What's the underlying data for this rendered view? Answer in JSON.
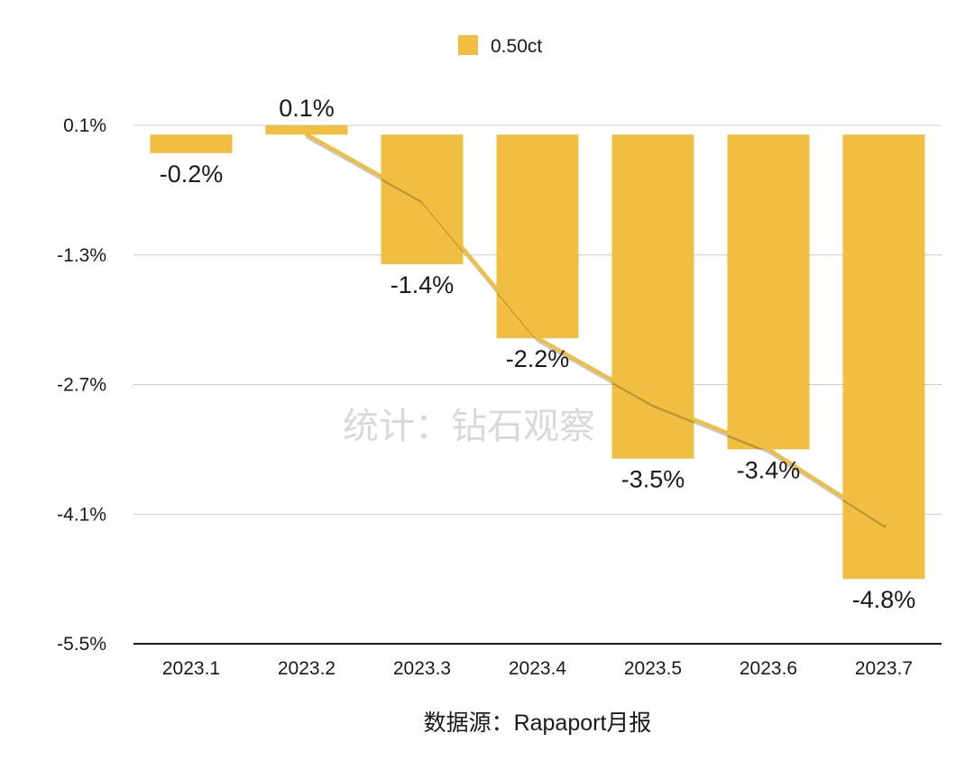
{
  "chart_data": {
    "type": "bar",
    "categories": [
      "2023.1",
      "2023.2",
      "2023.3",
      "2023.4",
      "2023.5",
      "2023.6",
      "2023.7"
    ],
    "series": [
      {
        "name": "0.50ct",
        "values": [
          -0.2,
          0.1,
          -1.4,
          -2.2,
          -3.5,
          -3.4,
          -4.8
        ],
        "color": "#F0BE41"
      }
    ],
    "data_labels": [
      "-0.2%",
      "0.1%",
      "-1.4%",
      "-2.2%",
      "-3.5%",
      "-3.4%",
      "-4.8%"
    ],
    "trend_line": {
      "type": "line",
      "values": [
        0.1,
        -0.6,
        -2.1,
        -2.8,
        -3.3,
        -4.1
      ],
      "categories": [
        "2023.2",
        "2023.3",
        "2023.4",
        "2023.5",
        "2023.6",
        "2023.7"
      ],
      "color": "#F0BE41"
    },
    "y_axis": {
      "ticks": [
        0.1,
        -1.3,
        -2.7,
        -4.1,
        -5.5
      ],
      "tick_labels": [
        "0.1%",
        "-1.3%",
        "-2.7%",
        "-4.1%",
        "-5.5%"
      ],
      "ylim": [
        -5.5,
        0.1
      ]
    },
    "grid": true,
    "legend_position": "top-center",
    "title": "",
    "xlabel": "",
    "ylabel": ""
  },
  "watermark": "统计：钻石观察",
  "source": "数据源：Rapaport月报"
}
